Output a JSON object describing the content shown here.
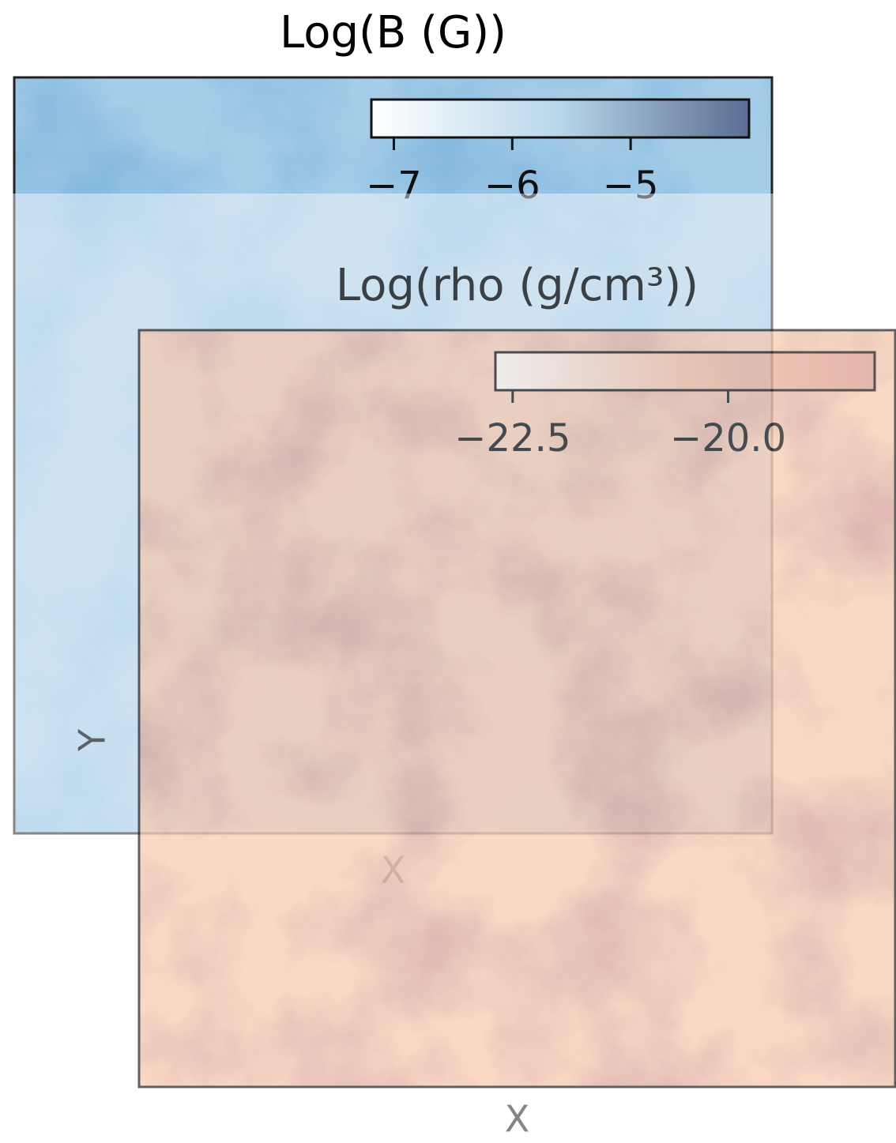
{
  "chart_data": [
    {
      "type": "image",
      "title": "Log(B (G))",
      "xlabel": "X",
      "clim": [
        -7.19,
        -4.0
      ],
      "cticks": [
        {
          "value": -7,
          "label": "−7"
        },
        {
          "value": -6,
          "label": "−6"
        },
        {
          "value": -5,
          "label": "−5"
        }
      ],
      "colors": [
        "#ffffff",
        "#b7d6ea",
        "#5b6d93"
      ]
    },
    {
      "type": "image",
      "title": "Log(rho (g/cm³))",
      "xlabel": "X",
      "ylabel": "Y",
      "clim": [
        -22.7,
        -18.3
      ],
      "cticks": [
        {
          "value": -22.5,
          "label": "−22.5"
        },
        {
          "value": -20.0,
          "label": "−20.0"
        }
      ],
      "colors": [
        "#fdf1e8",
        "#f2b89c",
        "#d99a8a"
      ]
    }
  ]
}
